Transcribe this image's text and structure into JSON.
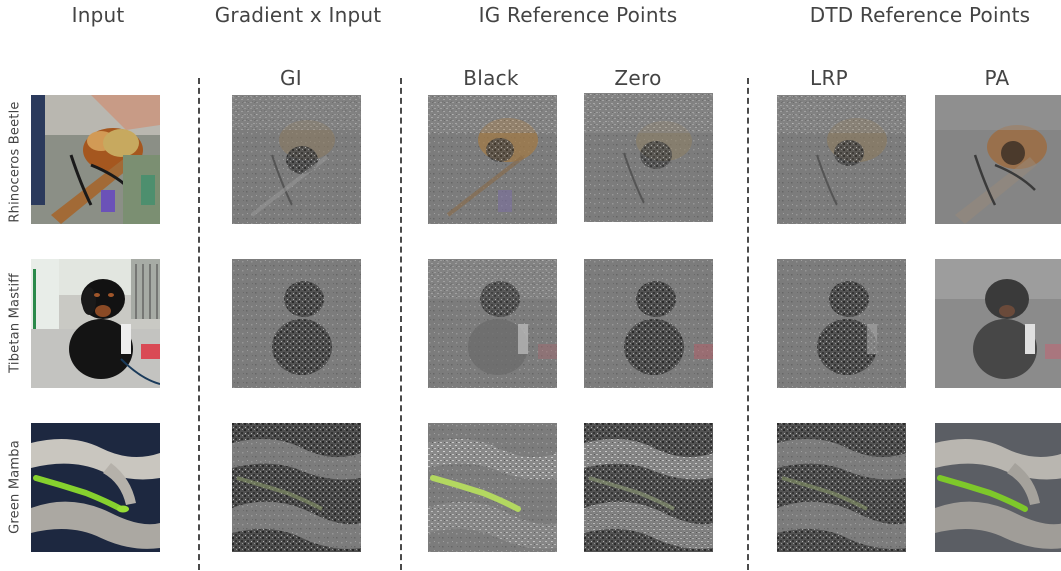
{
  "group_titles": {
    "input": "Input",
    "gradient_x_input": "Gradient x Input",
    "ig_reference_points": "IG Reference Points",
    "dtd_reference_points": "DTD Reference Points"
  },
  "column_titles": {
    "gi": "GI",
    "black": "Black",
    "zero": "Zero",
    "lrp": "LRP",
    "pa": "PA"
  },
  "row_labels": {
    "row1": "Rhinoceros Beetle",
    "row2": "Tibetan Mastiff",
    "row3": "Green Mamba"
  },
  "colors": {
    "text": "#444444",
    "divider": "#4a4a4a",
    "heatmap_gray": "#7d7d7d",
    "mamba_green": "#8fd13a"
  }
}
